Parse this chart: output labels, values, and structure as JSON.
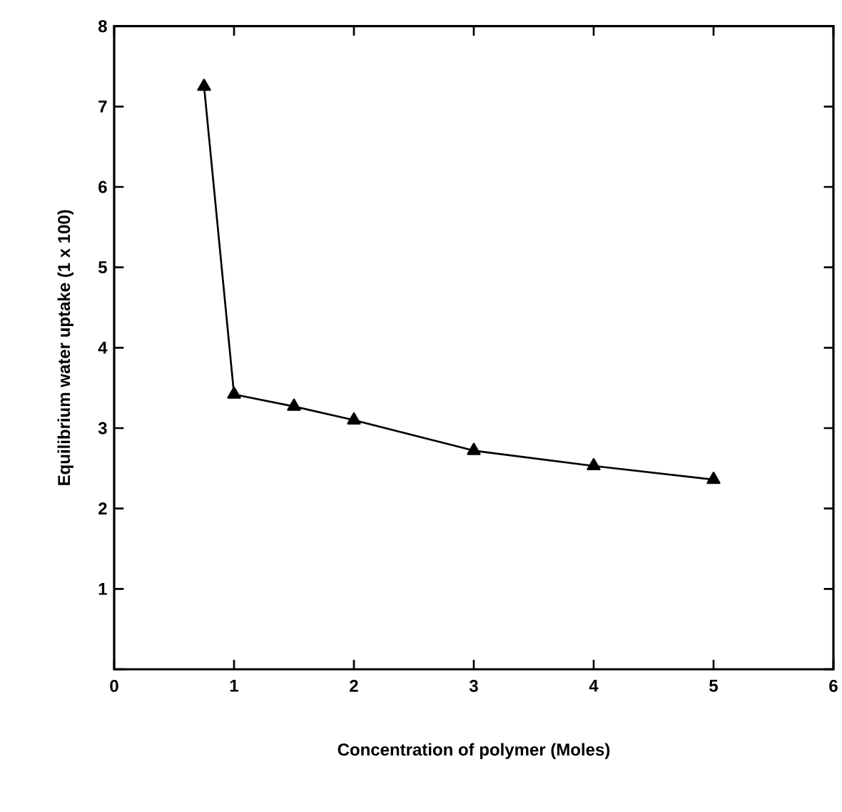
{
  "chart_data": {
    "type": "line",
    "xlabel": "Concentration of polymer (Moles)",
    "ylabel": "Equilibrium    water    uptake    (1 x 100)",
    "x": [
      0.75,
      1,
      1.5,
      2,
      3,
      4,
      5
    ],
    "series": [
      {
        "color": "#000000",
        "values": [
          7.25,
          3.42,
          3.27,
          3.1,
          2.72,
          2.53,
          2.36
        ]
      }
    ],
    "xlim": [
      0,
      6
    ],
    "ylim": [
      0,
      8
    ],
    "xticks": [
      0,
      1,
      2,
      3,
      4,
      5,
      6
    ],
    "yticks": [
      {
        "value": 0,
        "label": null
      },
      1,
      2,
      3,
      4,
      5,
      6,
      7,
      8
    ],
    "marker": "triangle",
    "line_style": "solid",
    "grid": false
  }
}
